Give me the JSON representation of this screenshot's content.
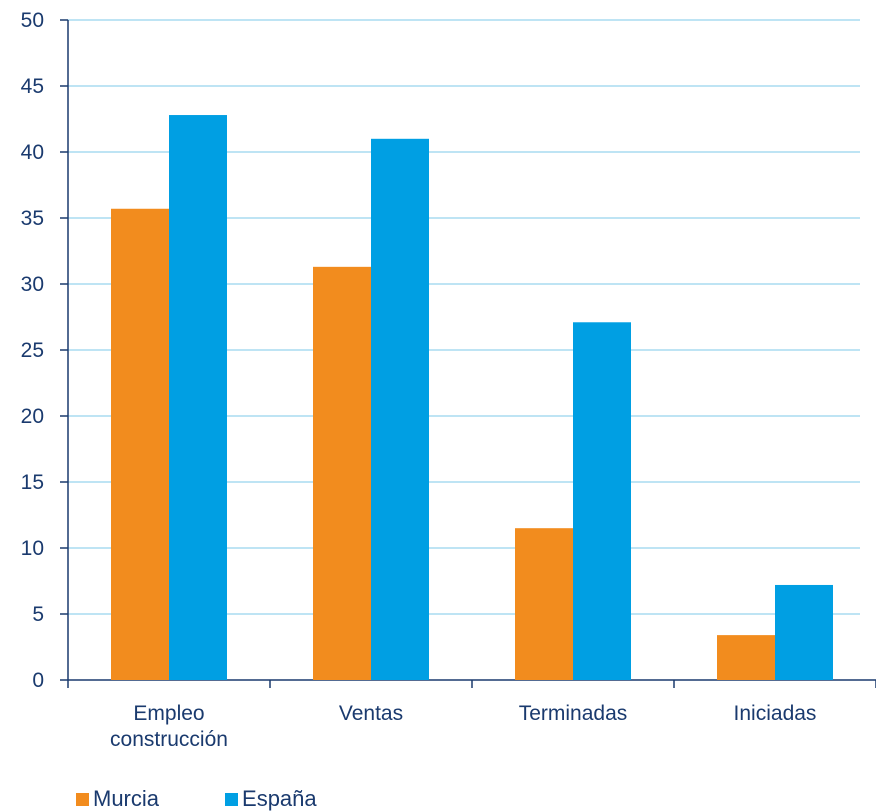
{
  "chart_data": {
    "type": "bar",
    "categories": [
      "Empleo\nconstrucción",
      "Ventas",
      "Terminadas",
      "Iniciadas"
    ],
    "series": [
      {
        "name": "Murcia",
        "color": "#f28c1e",
        "values": [
          35.7,
          31.3,
          11.5,
          3.4
        ]
      },
      {
        "name": "España",
        "color": "#009fe3",
        "values": [
          42.8,
          41.0,
          27.1,
          7.2
        ]
      }
    ],
    "ylim": [
      0,
      50
    ],
    "yticks": [
      0,
      5,
      10,
      15,
      20,
      25,
      30,
      35,
      40,
      45,
      50
    ],
    "grid": true,
    "legend_position": "bottom-left",
    "title": "",
    "xlabel": "",
    "ylabel": ""
  }
}
